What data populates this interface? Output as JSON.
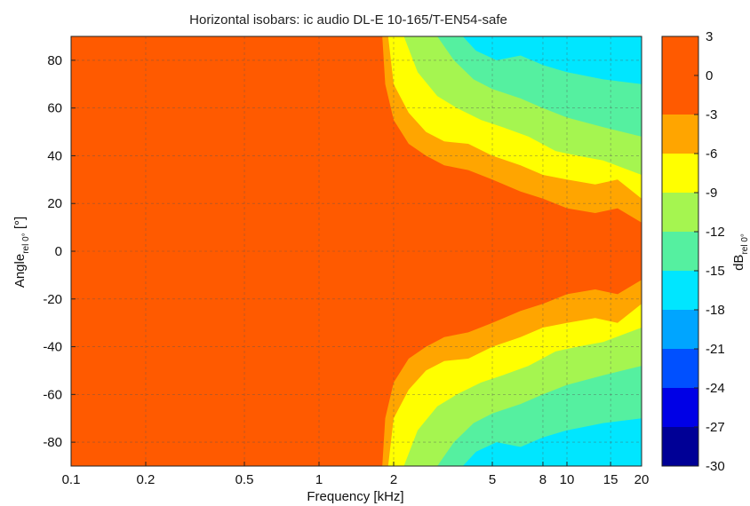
{
  "chart_data": {
    "type": "heatmap",
    "title": "Horizontal isobars: ic audio  DL-E 10-165/T-EN54-safe",
    "xlabel": "Frequency [kHz]",
    "ylabel_main": "Angle",
    "ylabel_sub": "rel 0°",
    "ylabel_unit": " [°]",
    "colorbar_label_main": "dB",
    "colorbar_label_sub": "rel 0°",
    "x_scale": "log",
    "xlim": [
      0.1,
      20
    ],
    "ylim": [
      -90,
      90
    ],
    "x_ticks": [
      {
        "value": 0.1,
        "label": "0.1"
      },
      {
        "value": 0.2,
        "label": "0.2"
      },
      {
        "value": 0.5,
        "label": "0.5"
      },
      {
        "value": 1,
        "label": "1"
      },
      {
        "value": 2,
        "label": "2"
      },
      {
        "value": 5,
        "label": "5"
      },
      {
        "value": 8,
        "label": "8"
      },
      {
        "value": 10,
        "label": "10"
      },
      {
        "value": 15,
        "label": "15"
      },
      {
        "value": 20,
        "label": "20"
      }
    ],
    "y_ticks": [
      {
        "value": 80,
        "label": "80"
      },
      {
        "value": 60,
        "label": "60"
      },
      {
        "value": 40,
        "label": "40"
      },
      {
        "value": 20,
        "label": "20"
      },
      {
        "value": 0,
        "label": "0"
      },
      {
        "value": -20,
        "label": "-20"
      },
      {
        "value": -40,
        "label": "-40"
      },
      {
        "value": -60,
        "label": "-60"
      },
      {
        "value": -80,
        "label": "-80"
      }
    ],
    "grid": true,
    "colorbar": {
      "ticks": [
        {
          "value": 3,
          "label": "3"
        },
        {
          "value": 0,
          "label": "0"
        },
        {
          "value": -3,
          "label": "-3"
        },
        {
          "value": -6,
          "label": "-6"
        },
        {
          "value": -9,
          "label": "-9"
        },
        {
          "value": -12,
          "label": "-12"
        },
        {
          "value": -15,
          "label": "-15"
        },
        {
          "value": -18,
          "label": "-18"
        },
        {
          "value": -21,
          "label": "-21"
        },
        {
          "value": -24,
          "label": "-24"
        },
        {
          "value": -27,
          "label": "-27"
        },
        {
          "value": -30,
          "label": "-30"
        }
      ],
      "levels": [
        {
          "from": -3,
          "to": 3,
          "color": "#ff5a00"
        },
        {
          "from": -6,
          "to": -3,
          "color": "#ffa500"
        },
        {
          "from": -9,
          "to": -6,
          "color": "#ffff00"
        },
        {
          "from": -12,
          "to": -9,
          "color": "#a5f550"
        },
        {
          "from": -15,
          "to": -12,
          "color": "#55f0a0"
        },
        {
          "from": -18,
          "to": -15,
          "color": "#00e6ff"
        },
        {
          "from": -21,
          "to": -18,
          "color": "#00a5ff"
        },
        {
          "from": -24,
          "to": -21,
          "color": "#0050ff"
        },
        {
          "from": -27,
          "to": -24,
          "color": "#0000e6"
        },
        {
          "from": -30,
          "to": -27,
          "color": "#000096"
        }
      ]
    },
    "coverage_boundaries": [
      {
        "level": -3,
        "points": [
          [
            0.1,
            90
          ],
          [
            1.8,
            90
          ],
          [
            1.85,
            70
          ],
          [
            2.0,
            55
          ],
          [
            2.3,
            45
          ],
          [
            2.7,
            40
          ],
          [
            3.2,
            36
          ],
          [
            4.0,
            34
          ],
          [
            5.0,
            30
          ],
          [
            6.5,
            25
          ],
          [
            8.0,
            22
          ],
          [
            10.0,
            18
          ],
          [
            13.0,
            16
          ],
          [
            16.0,
            18
          ],
          [
            20.0,
            12
          ]
        ]
      },
      {
        "level": -6,
        "points": [
          [
            0.1,
            90
          ],
          [
            1.9,
            90
          ],
          [
            2.0,
            70
          ],
          [
            2.3,
            58
          ],
          [
            2.7,
            50
          ],
          [
            3.2,
            46
          ],
          [
            4.0,
            45
          ],
          [
            5.0,
            40
          ],
          [
            6.5,
            36
          ],
          [
            8.0,
            32
          ],
          [
            10.0,
            30
          ],
          [
            13.0,
            28
          ],
          [
            16.0,
            30
          ],
          [
            20.0,
            22
          ]
        ]
      },
      {
        "level": -9,
        "points": [
          [
            0.1,
            90
          ],
          [
            2.2,
            90
          ],
          [
            2.5,
            75
          ],
          [
            3.0,
            65
          ],
          [
            3.6,
            60
          ],
          [
            4.5,
            55
          ],
          [
            5.5,
            52
          ],
          [
            7.0,
            48
          ],
          [
            9.0,
            42
          ],
          [
            11.0,
            40
          ],
          [
            14.0,
            38
          ],
          [
            20.0,
            32
          ]
        ]
      },
      {
        "level": -12,
        "points": [
          [
            0.1,
            90
          ],
          [
            3.0,
            90
          ],
          [
            3.5,
            80
          ],
          [
            4.2,
            72
          ],
          [
            5.0,
            68
          ],
          [
            6.5,
            64
          ],
          [
            8.0,
            60
          ],
          [
            10.0,
            56
          ],
          [
            14.0,
            52
          ],
          [
            20.0,
            48
          ]
        ]
      },
      {
        "level": -15,
        "points": [
          [
            0.1,
            90
          ],
          [
            3.8,
            90
          ],
          [
            4.3,
            84
          ],
          [
            5.2,
            80
          ],
          [
            6.5,
            82
          ],
          [
            8.0,
            78
          ],
          [
            10.0,
            75
          ],
          [
            14.0,
            72
          ],
          [
            20.0,
            70
          ]
        ]
      }
    ]
  }
}
